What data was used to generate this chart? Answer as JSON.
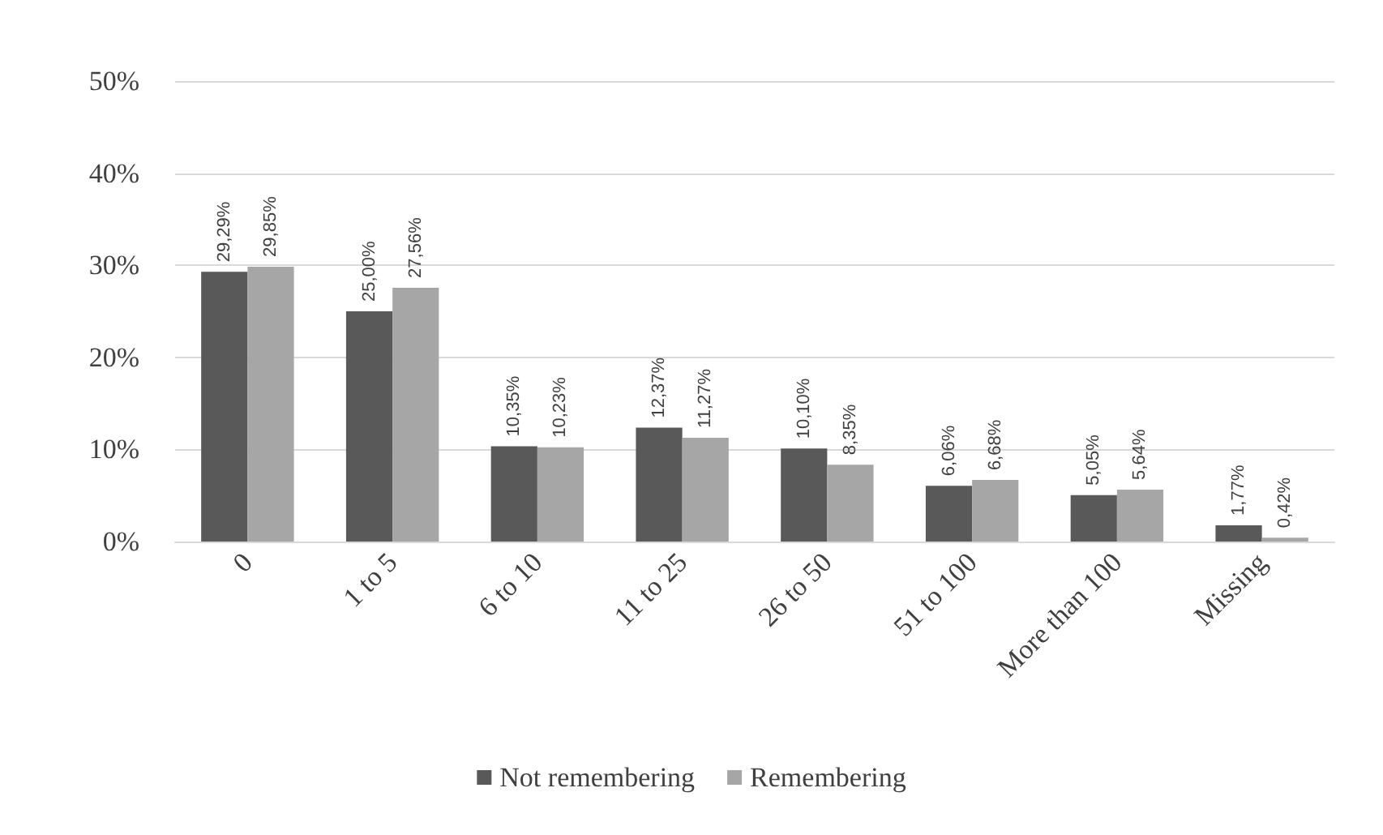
{
  "chart_data": {
    "type": "bar",
    "categories": [
      "0",
      "1 to 5",
      "6 to 10",
      "11 to 25",
      "26 to 50",
      "51 to 100",
      "More than 100",
      "Missing"
    ],
    "series": [
      {
        "name": "Not remembering",
        "color": "#595959",
        "values": [
          29.29,
          25.0,
          10.35,
          12.37,
          10.1,
          6.06,
          5.05,
          1.77
        ],
        "value_labels": [
          "29,29%",
          "25,00%",
          "10,35%",
          "12,37%",
          "10,10%",
          "6,06%",
          "5,05%",
          "1,77%"
        ]
      },
      {
        "name": "Remembering",
        "color": "#a6a6a6",
        "values": [
          29.85,
          27.56,
          10.23,
          11.27,
          8.35,
          6.68,
          5.64,
          0.42
        ],
        "value_labels": [
          "29,85%",
          "27,56%",
          "10,23%",
          "11,27%",
          "8,35%",
          "6,68%",
          "5,64%",
          "0,42%"
        ]
      }
    ],
    "ylim": [
      0,
      50
    ],
    "yticks": [
      {
        "value": 0,
        "label": "0%"
      },
      {
        "value": 10,
        "label": "10%"
      },
      {
        "value": 20,
        "label": "20%"
      },
      {
        "value": 30,
        "label": "30%"
      },
      {
        "value": 40,
        "label": "40%"
      },
      {
        "value": 50,
        "label": "50%"
      }
    ],
    "grid": "y",
    "legend": "bottom"
  }
}
